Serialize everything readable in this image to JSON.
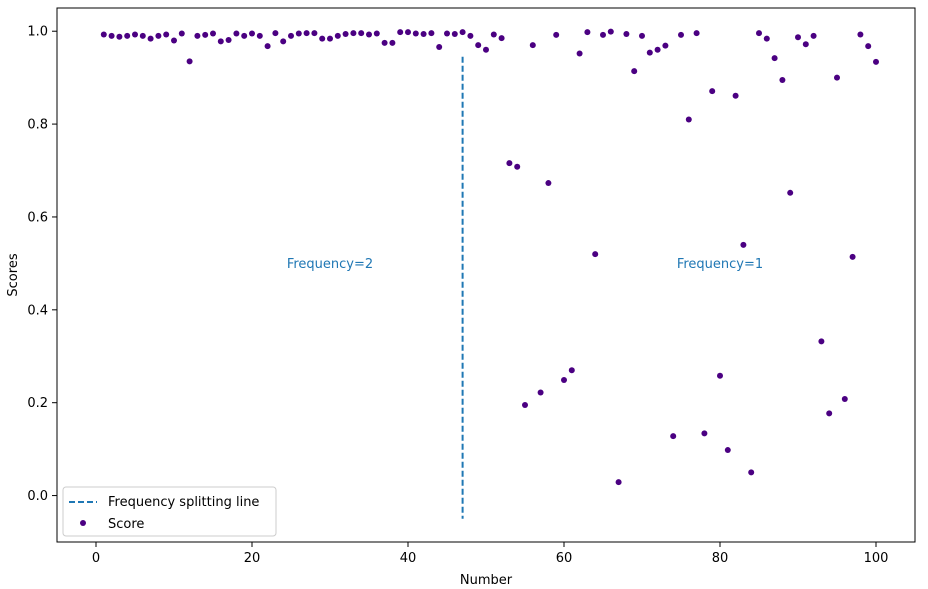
{
  "chart_data": {
    "type": "scatter",
    "xlabel": "Number",
    "ylabel": "Scores",
    "xlim": [
      -5,
      105
    ],
    "ylim": [
      -0.1,
      1.05
    ],
    "xticks": [
      0,
      20,
      40,
      60,
      80,
      100
    ],
    "yticks": [
      0.0,
      0.2,
      0.4,
      0.6,
      0.8,
      1.0
    ],
    "grid": false,
    "legend_position": "lower-left",
    "series": [
      {
        "name": "Score",
        "color": "#4b0082",
        "points": [
          [
            1,
            0.993
          ],
          [
            2,
            0.99
          ],
          [
            3,
            0.988
          ],
          [
            4,
            0.99
          ],
          [
            5,
            0.993
          ],
          [
            6,
            0.99
          ],
          [
            7,
            0.984
          ],
          [
            8,
            0.99
          ],
          [
            9,
            0.993
          ],
          [
            10,
            0.98
          ],
          [
            11,
            0.995
          ],
          [
            12,
            0.935
          ],
          [
            13,
            0.99
          ],
          [
            14,
            0.992
          ],
          [
            15,
            0.995
          ],
          [
            16,
            0.978
          ],
          [
            17,
            0.981
          ],
          [
            18,
            0.995
          ],
          [
            19,
            0.99
          ],
          [
            20,
            0.995
          ],
          [
            21,
            0.99
          ],
          [
            22,
            0.968
          ],
          [
            23,
            0.996
          ],
          [
            24,
            0.978
          ],
          [
            25,
            0.99
          ],
          [
            26,
            0.995
          ],
          [
            27,
            0.996
          ],
          [
            28,
            0.996
          ],
          [
            29,
            0.984
          ],
          [
            30,
            0.984
          ],
          [
            31,
            0.99
          ],
          [
            32,
            0.994
          ],
          [
            33,
            0.996
          ],
          [
            34,
            0.996
          ],
          [
            35,
            0.993
          ],
          [
            36,
            0.995
          ],
          [
            37,
            0.975
          ],
          [
            38,
            0.975
          ],
          [
            39,
            0.998
          ],
          [
            40,
            0.998
          ],
          [
            41,
            0.995
          ],
          [
            42,
            0.994
          ],
          [
            43,
            0.996
          ],
          [
            44,
            0.966
          ],
          [
            45,
            0.995
          ],
          [
            46,
            0.994
          ],
          [
            47,
            0.998
          ],
          [
            48,
            0.99
          ],
          [
            49,
            0.97
          ],
          [
            50,
            0.96
          ],
          [
            51,
            0.993
          ],
          [
            52,
            0.985
          ],
          [
            53,
            0.716
          ],
          [
            54,
            0.708
          ],
          [
            55,
            0.195
          ],
          [
            56,
            0.97
          ],
          [
            57,
            0.222
          ],
          [
            58,
            0.673
          ],
          [
            59,
            0.992
          ],
          [
            60,
            0.249
          ],
          [
            61,
            0.27
          ],
          [
            62,
            0.952
          ],
          [
            63,
            0.998
          ],
          [
            64,
            0.52
          ],
          [
            65,
            0.992
          ],
          [
            66,
            0.999
          ],
          [
            67,
            0.029
          ],
          [
            68,
            0.994
          ],
          [
            69,
            0.914
          ],
          [
            70,
            0.99
          ],
          [
            71,
            0.954
          ],
          [
            72,
            0.96
          ],
          [
            73,
            0.969
          ],
          [
            74,
            0.128
          ],
          [
            75,
            0.992
          ],
          [
            76,
            0.81
          ],
          [
            77,
            0.996
          ],
          [
            78,
            0.134
          ],
          [
            79,
            0.871
          ],
          [
            80,
            0.258
          ],
          [
            81,
            0.098
          ],
          [
            82,
            0.861
          ],
          [
            83,
            0.54
          ],
          [
            84,
            0.05
          ],
          [
            85,
            0.996
          ],
          [
            86,
            0.984
          ],
          [
            87,
            0.942
          ],
          [
            88,
            0.895
          ],
          [
            89,
            0.652
          ],
          [
            90,
            0.987
          ],
          [
            91,
            0.972
          ],
          [
            92,
            0.99
          ],
          [
            93,
            0.332
          ],
          [
            94,
            0.177
          ],
          [
            95,
            0.9
          ],
          [
            96,
            0.208
          ],
          [
            97,
            0.514
          ],
          [
            98,
            0.993
          ],
          [
            99,
            0.968
          ],
          [
            100,
            0.934
          ]
        ]
      }
    ],
    "split_line": {
      "name": "Frequency splitting line",
      "x": 47,
      "y_range": [
        -0.05,
        0.945
      ],
      "color": "#1f77b4",
      "style": "dashed"
    },
    "annotations": [
      {
        "text": "Frequency=2",
        "x": 30,
        "y": 0.5,
        "color": "#1f77b4"
      },
      {
        "text": "Frequency=1",
        "x": 80,
        "y": 0.5,
        "color": "#1f77b4"
      }
    ],
    "legend": [
      {
        "label": "Frequency splitting line",
        "marker": "dashed-line"
      },
      {
        "label": "Score",
        "marker": "dot"
      }
    ]
  }
}
